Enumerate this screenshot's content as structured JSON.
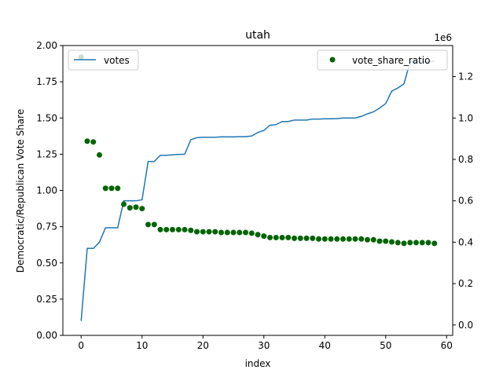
{
  "chart_data": {
    "type": "line+scatter",
    "title": "utah",
    "xlabel": "index",
    "ylabel_left": "Democratic/Republican Vote Share",
    "ylabel_right": "",
    "right_axis_multiplier": "1e6",
    "xlim": [
      -3,
      61
    ],
    "ylim_left": [
      0,
      2.0
    ],
    "ylim_right": [
      -0.05,
      1.35
    ],
    "x_ticks": [
      0,
      10,
      20,
      30,
      40,
      50,
      60
    ],
    "y_ticks_left": [
      0.0,
      0.25,
      0.5,
      0.75,
      1.0,
      1.25,
      1.5,
      1.75,
      2.0
    ],
    "y_ticks_left_labels": [
      "0.00",
      "0.25",
      "0.50",
      "0.75",
      "1.00",
      "1.25",
      "1.50",
      "1.75",
      "2.00"
    ],
    "y_ticks_right": [
      0.0,
      0.2,
      0.4,
      0.6,
      0.8,
      1.0,
      1.2
    ],
    "y_ticks_right_labels": [
      "0.0",
      "0.2",
      "0.4",
      "0.6",
      "0.8",
      "1.0",
      "1.2"
    ],
    "grid": false,
    "legend_left": {
      "placement": "upper-left",
      "label": "votes",
      "color": "#1f77b4"
    },
    "legend_right": {
      "placement": "upper-right",
      "label": "vote_share_ratio",
      "color": "#006400"
    },
    "series": [
      {
        "name": "votes",
        "kind": "line",
        "axis": "right",
        "color": "#1f77b4",
        "x": [
          0,
          1,
          2,
          3,
          4,
          5,
          6,
          7,
          8,
          9,
          10,
          11,
          12,
          13,
          14,
          15,
          16,
          17,
          18,
          19,
          20,
          21,
          22,
          23,
          24,
          25,
          26,
          27,
          28,
          29,
          30,
          31,
          32,
          33,
          34,
          35,
          36,
          37,
          38,
          39,
          40,
          41,
          42,
          43,
          44,
          45,
          46,
          47,
          48,
          49,
          50,
          51,
          52,
          53,
          54,
          55,
          56,
          57,
          58
        ],
        "y": [
          0.02,
          0.37,
          0.37,
          0.4,
          0.47,
          0.47,
          0.47,
          0.6,
          0.6,
          0.6,
          0.605,
          0.79,
          0.79,
          0.82,
          0.82,
          0.822,
          0.824,
          0.825,
          0.895,
          0.905,
          0.907,
          0.907,
          0.907,
          0.909,
          0.909,
          0.909,
          0.91,
          0.91,
          0.913,
          0.93,
          0.94,
          0.965,
          0.968,
          0.983,
          0.983,
          0.99,
          0.99,
          0.99,
          0.995,
          0.995,
          0.996,
          0.996,
          0.997,
          1.0,
          1.0,
          1.0,
          1.008,
          1.02,
          1.03,
          1.048,
          1.07,
          1.13,
          1.145,
          1.165,
          1.27,
          1.27,
          1.27,
          1.272,
          1.275
        ]
      },
      {
        "name": "vote_share_ratio",
        "kind": "scatter",
        "axis": "left",
        "color": "#006400",
        "x": [
          0,
          1,
          2,
          3,
          4,
          5,
          6,
          7,
          8,
          9,
          10,
          11,
          12,
          13,
          14,
          15,
          16,
          17,
          18,
          19,
          20,
          21,
          22,
          23,
          24,
          25,
          26,
          27,
          28,
          29,
          30,
          31,
          32,
          33,
          34,
          35,
          36,
          37,
          38,
          39,
          40,
          41,
          42,
          43,
          44,
          45,
          46,
          47,
          48,
          49,
          50,
          51,
          52,
          53,
          54,
          55,
          56,
          57,
          58
        ],
        "y": [
          1.92,
          1.34,
          1.335,
          1.245,
          1.015,
          1.015,
          1.015,
          0.905,
          0.88,
          0.885,
          0.875,
          0.765,
          0.765,
          0.73,
          0.73,
          0.73,
          0.73,
          0.73,
          0.725,
          0.715,
          0.715,
          0.715,
          0.715,
          0.71,
          0.71,
          0.71,
          0.71,
          0.71,
          0.705,
          0.695,
          0.685,
          0.675,
          0.675,
          0.675,
          0.675,
          0.67,
          0.67,
          0.67,
          0.67,
          0.665,
          0.665,
          0.665,
          0.665,
          0.665,
          0.665,
          0.665,
          0.665,
          0.66,
          0.66,
          0.65,
          0.65,
          0.645,
          0.64,
          0.635,
          0.64,
          0.64,
          0.64,
          0.64,
          0.635
        ]
      }
    ]
  }
}
